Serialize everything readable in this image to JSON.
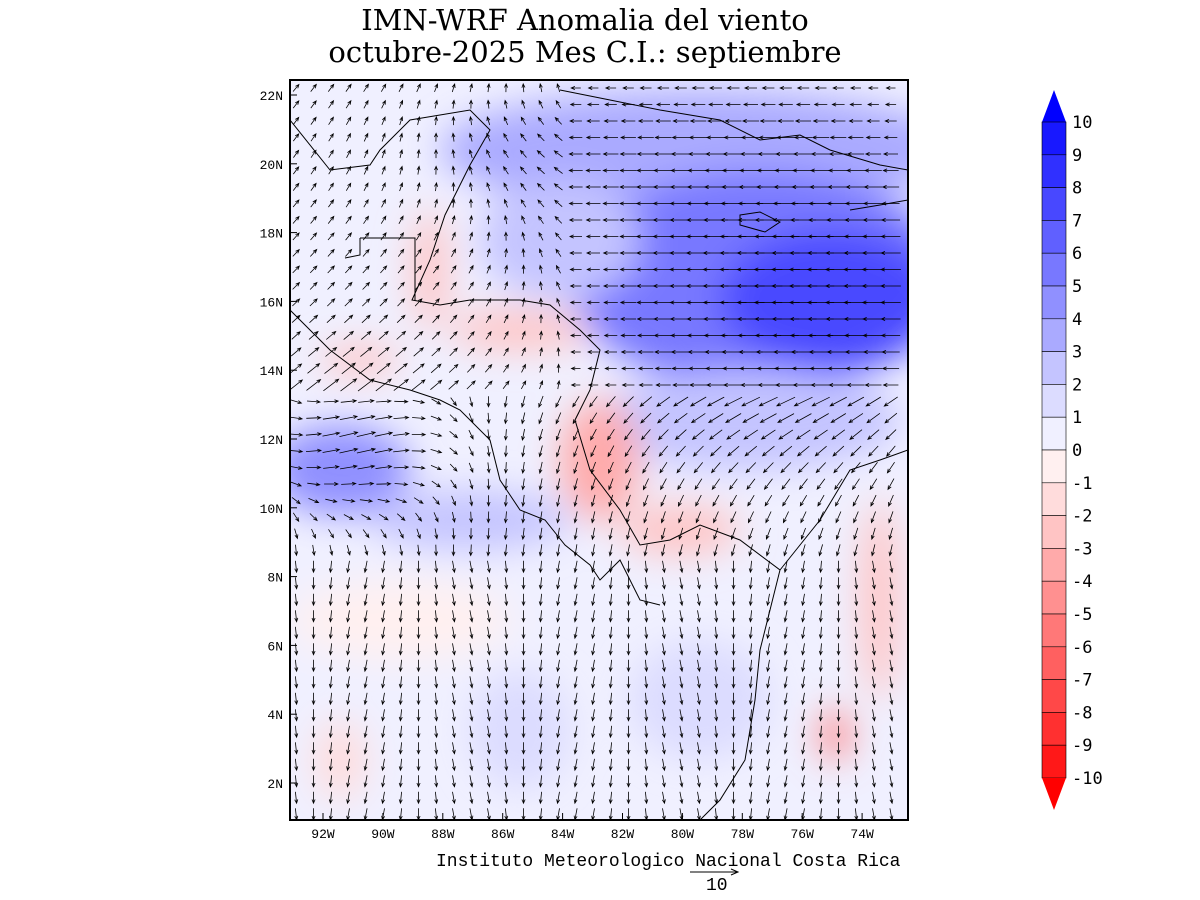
{
  "title_line1": "IMN-WRF Anomalia del viento",
  "title_line2": "octubre-2025 Mes C.I.: septiembre",
  "lat_ticks": [
    "22N",
    "20N",
    "18N",
    "16N",
    "14N",
    "12N",
    "10N",
    "8N",
    "6N",
    "4N",
    "2N"
  ],
  "lon_ticks": [
    "92W",
    "90W",
    "88W",
    "86W",
    "84W",
    "82W",
    "80W",
    "78W",
    "76W",
    "74W"
  ],
  "colorbar": {
    "labels": [
      "10",
      "9",
      "8",
      "7",
      "6",
      "5",
      "4",
      "3",
      "2",
      "1",
      "0",
      "-1",
      "-2",
      "-3",
      "-4",
      "-5",
      "-6",
      "-7",
      "-8",
      "-9",
      "-10"
    ],
    "colors": [
      "#0000ff",
      "#1818ff",
      "#3030ff",
      "#4848ff",
      "#6060ff",
      "#7878ff",
      "#9090ff",
      "#aaaaff",
      "#c4c4ff",
      "#dcdcff",
      "#f0f0ff",
      "#fff0f0",
      "#ffdcdc",
      "#ffc4c4",
      "#ffaaaa",
      "#ff9090",
      "#ff7878",
      "#ff6060",
      "#ff4848",
      "#ff3030",
      "#ff1818",
      "#ff0000"
    ]
  },
  "footer": "Instituto Meteorologico Nacional Costa Rica",
  "reference_vector_label": "10"
}
